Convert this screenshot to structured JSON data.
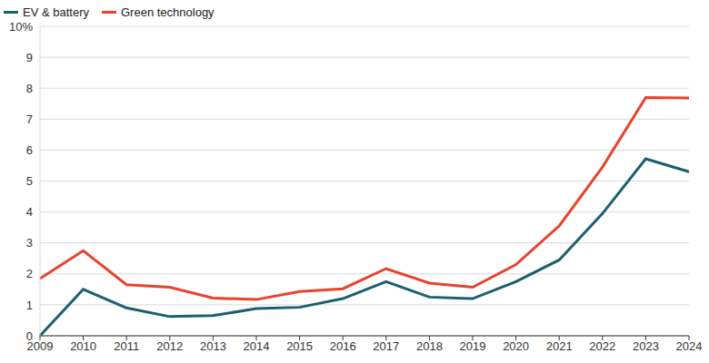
{
  "chart_data": {
    "type": "line",
    "categories": [
      "2009",
      "2010",
      "2011",
      "2012",
      "2013",
      "2014",
      "2015",
      "2016",
      "2017",
      "2018",
      "2019",
      "2020",
      "2021",
      "2022",
      "2023",
      "2024"
    ],
    "series": [
      {
        "name": "EV & battery",
        "color": "#1b5f6f",
        "values": [
          0,
          1.5,
          0.9,
          0.62,
          0.65,
          0.88,
          0.92,
          1.2,
          1.75,
          1.25,
          1.2,
          1.75,
          2.45,
          3.95,
          5.72,
          5.3
        ]
      },
      {
        "name": "Green technology",
        "color": "#e8432d",
        "values": [
          1.85,
          2.75,
          1.65,
          1.57,
          1.22,
          1.17,
          1.43,
          1.52,
          2.17,
          1.7,
          1.57,
          2.3,
          3.55,
          5.45,
          7.7,
          7.68
        ]
      }
    ],
    "ylim": [
      0,
      10
    ],
    "yticks": [
      0,
      1,
      2,
      3,
      4,
      5,
      6,
      7,
      8,
      9,
      {
        "value": 10,
        "label": "10%"
      }
    ],
    "grid": true,
    "legend": "top-left"
  }
}
